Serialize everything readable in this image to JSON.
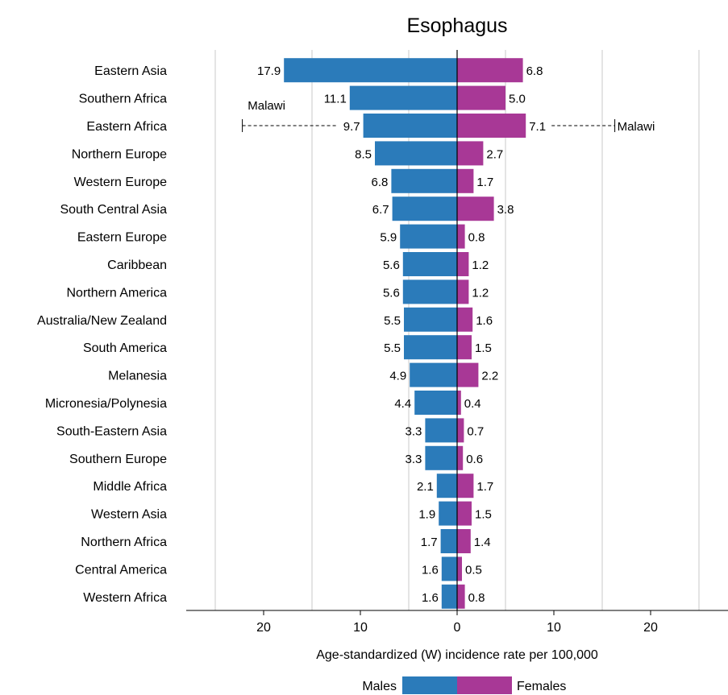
{
  "chart_data": {
    "type": "bar",
    "orientation": "horizontal-diverging",
    "title": "Esophagus",
    "xlabel": "Age-standardized (W) incidence rate per 100,000",
    "xlim": [
      -28,
      28
    ],
    "xticks": [
      -20,
      -10,
      0,
      10,
      20
    ],
    "xtick_labels": [
      "20",
      "10",
      "0",
      "10",
      "20"
    ],
    "gridlines": [
      -25,
      -15,
      -5,
      5,
      15,
      25
    ],
    "grid": true,
    "categories": [
      "Eastern Asia",
      "Southern Africa",
      "Eastern Africa",
      "Northern Europe",
      "Western Europe",
      "South Central Asia",
      "Eastern Europe",
      "Caribbean",
      "Northern America",
      "Australia/New Zealand",
      "South America",
      "Melanesia",
      "Micronesia/Polynesia",
      "South-Eastern Asia",
      "Southern Europe",
      "Middle Africa",
      "Western Asia",
      "Northern Africa",
      "Central America",
      "Western Africa"
    ],
    "series": [
      {
        "name": "Males",
        "color": "#2b7bba",
        "side": "left",
        "values": [
          17.9,
          11.1,
          9.7,
          8.5,
          6.8,
          6.7,
          5.9,
          5.6,
          5.6,
          5.5,
          5.5,
          4.9,
          4.4,
          3.3,
          3.3,
          2.1,
          1.9,
          1.7,
          1.6,
          1.6
        ],
        "labels": [
          "17.9",
          "11.1",
          "9.7",
          "8.5",
          "6.8",
          "6.7",
          "5.9",
          "5.6",
          "5.6",
          "5.5",
          "5.5",
          "4.9",
          "4.4",
          "3.3",
          "3.3",
          "2.1",
          "1.9",
          "1.7",
          "1.6",
          "1.6"
        ]
      },
      {
        "name": "Females",
        "color": "#a83896",
        "side": "right",
        "values": [
          6.8,
          5.0,
          7.1,
          2.7,
          1.7,
          3.8,
          0.8,
          1.2,
          1.2,
          1.6,
          1.5,
          2.2,
          0.4,
          0.7,
          0.6,
          1.7,
          1.5,
          1.4,
          0.5,
          0.8
        ],
        "labels": [
          "6.8",
          "5.0",
          "7.1",
          "2.7",
          "1.7",
          "3.8",
          "0.8",
          "1.2",
          "1.2",
          "1.6",
          "1.5",
          "2.2",
          "0.4",
          "0.7",
          "0.6",
          "1.7",
          "1.5",
          "1.4",
          "0.5",
          "0.8"
        ]
      }
    ],
    "annotations": [
      {
        "category": "Eastern Africa",
        "series": "Males",
        "label": "Malawi",
        "value": 22.2
      },
      {
        "category": "Eastern Africa",
        "series": "Females",
        "label": "Malawi",
        "value": 16.3
      }
    ],
    "legend": {
      "placement": "bottom-center",
      "entries": [
        {
          "label": "Males",
          "color": "#2b7bba"
        },
        {
          "label": "Females",
          "color": "#a83896"
        }
      ]
    }
  }
}
